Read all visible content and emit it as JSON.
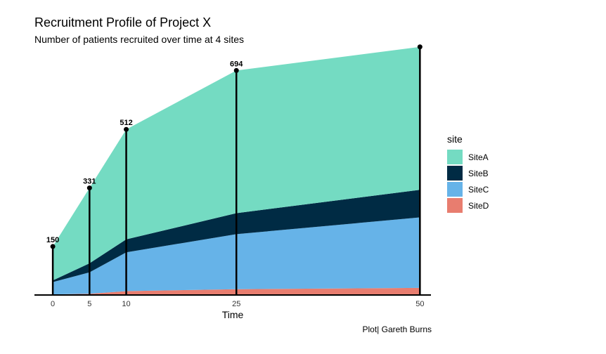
{
  "chart_data": {
    "type": "area",
    "title": "Recruitment Profile of Project X",
    "subtitle": "Number of patients recruited over time at 4 sites",
    "caption": "Plot| Gareth Burns",
    "xlabel": "Time",
    "ylabel": "",
    "x": [
      0,
      5,
      10,
      25,
      50
    ],
    "xlim": [
      -2.5,
      51.5
    ],
    "ylim": [
      0,
      760
    ],
    "stacked": true,
    "series": [
      {
        "name": "SiteD",
        "color": "#E87D6F",
        "values": [
          2,
          4,
          12,
          18,
          22
        ]
      },
      {
        "name": "SiteC",
        "color": "#66B3E8",
        "values": [
          38,
          66,
          120,
          170,
          218
        ]
      },
      {
        "name": "SiteB",
        "color": "#002B44",
        "values": [
          5,
          28,
          40,
          65,
          85
        ]
      },
      {
        "name": "SiteA",
        "color": "#74DBC2",
        "values": [
          105,
          233,
          340,
          441,
          442
        ]
      }
    ],
    "totals": [
      {
        "x": 0,
        "label": "150",
        "value": 150
      },
      {
        "x": 5,
        "label": "331",
        "value": 331
      },
      {
        "x": 10,
        "label": "512",
        "value": 512
      },
      {
        "x": 25,
        "label": "694",
        "value": 694
      },
      {
        "x": 50,
        "label": "",
        "value": 767
      }
    ],
    "x_ticks": [
      "0",
      "5",
      "10",
      "25",
      "50"
    ],
    "legend": {
      "title": "site",
      "position": "right",
      "items": [
        {
          "label": "SiteA",
          "color": "#74DBC2"
        },
        {
          "label": "SiteB",
          "color": "#002B44"
        },
        {
          "label": "SiteC",
          "color": "#66B3E8"
        },
        {
          "label": "SiteD",
          "color": "#E87D6F"
        }
      ]
    },
    "grid": false
  }
}
